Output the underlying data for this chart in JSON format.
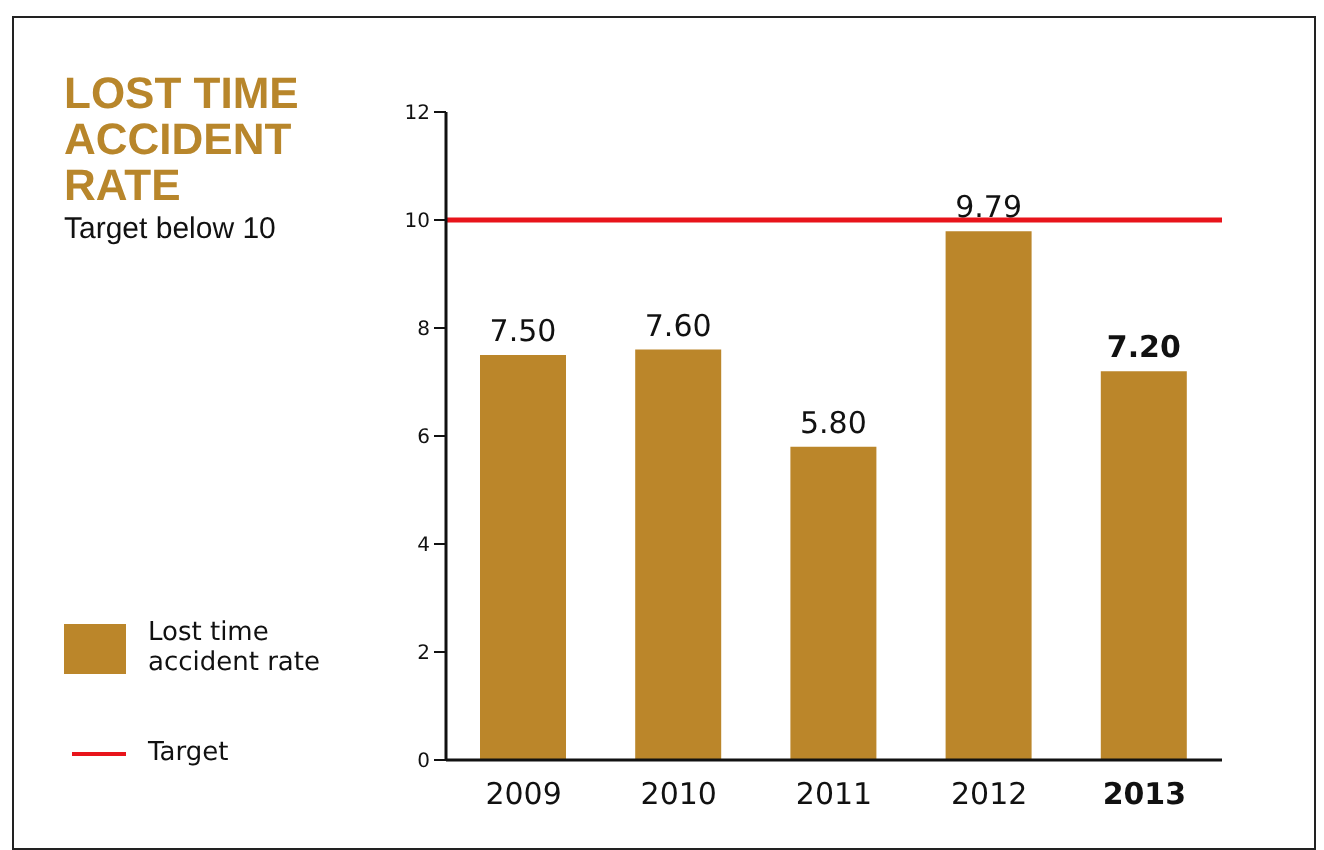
{
  "chart_data": {
    "type": "bar",
    "title": "LOST TIME ACCIDENT RATE",
    "subtitle": "Target below 10",
    "categories": [
      "2009",
      "2010",
      "2011",
      "2012",
      "2013"
    ],
    "series": [
      {
        "name": "Lost time accident rate",
        "color": "#bb862a",
        "values": [
          7.5,
          7.6,
          5.8,
          9.79,
          7.2
        ]
      }
    ],
    "value_labels": [
      "7.50",
      "7.60",
      "5.80",
      "9.79",
      "7.20"
    ],
    "ylim": [
      0,
      12
    ],
    "yticks": [
      0,
      2,
      4,
      6,
      8,
      10,
      12
    ],
    "grid": false,
    "legend": "left",
    "ref_lines": [
      {
        "axis": "y",
        "value": 10,
        "label": "Target",
        "color": "#e8141b"
      }
    ]
  }
}
